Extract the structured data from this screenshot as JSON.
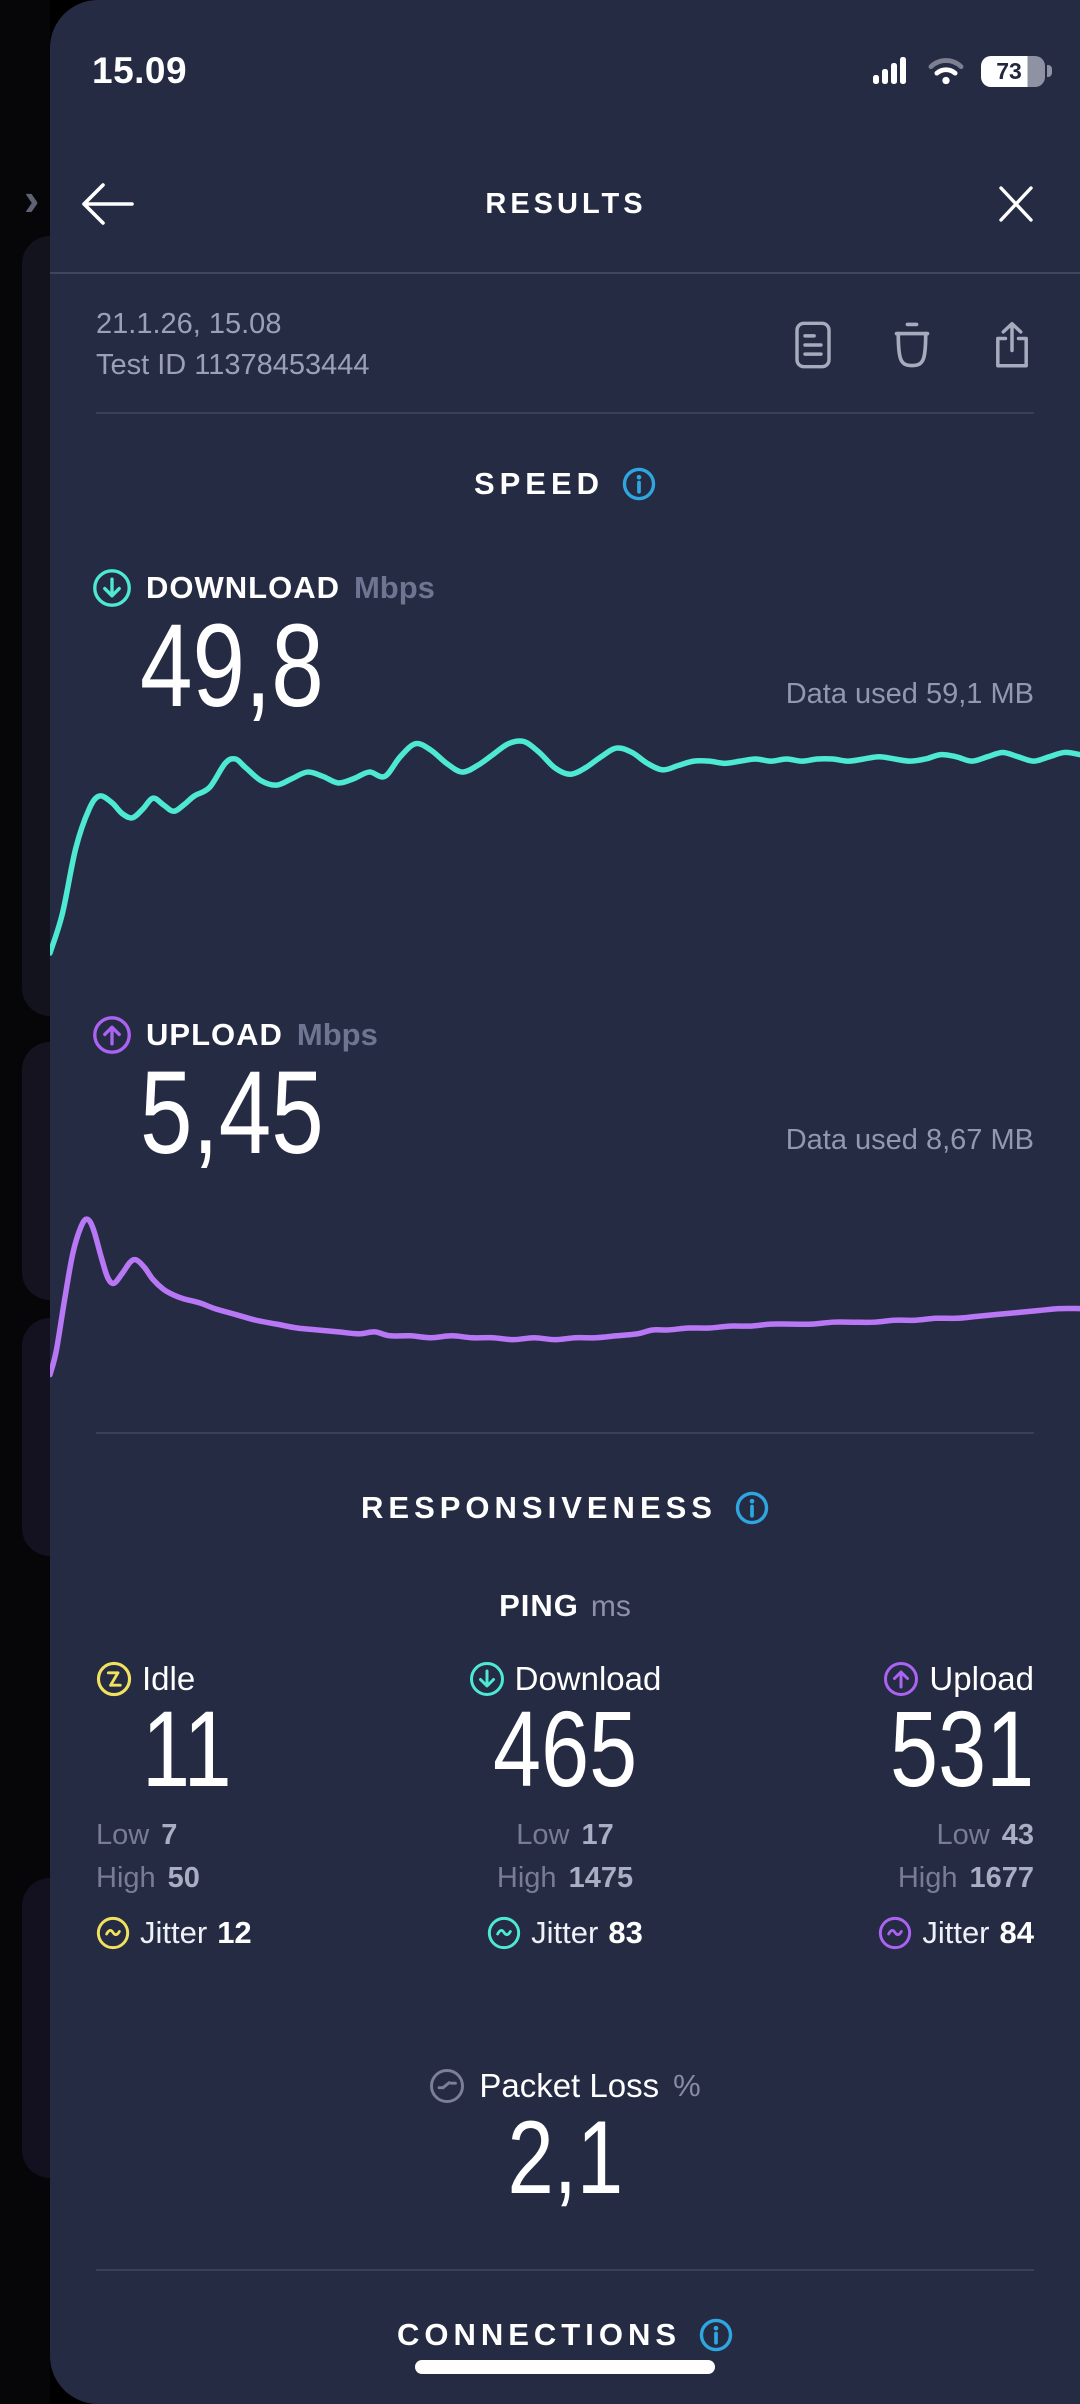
{
  "status_bar": {
    "time": "15.09",
    "battery_percent": "73"
  },
  "header": {
    "title": "RESULTS"
  },
  "test_info": {
    "datetime": "21.1.26, 15.08",
    "test_id": "Test ID 11378453444"
  },
  "speed_section": {
    "title": "SPEED",
    "download": {
      "label": "DOWNLOAD",
      "unit": "Mbps",
      "value": "49,8",
      "data_used": "Data used 59,1 MB"
    },
    "upload": {
      "label": "UPLOAD",
      "unit": "Mbps",
      "value": "5,45",
      "data_used": "Data used 8,67 MB"
    }
  },
  "responsiveness_section": {
    "title": "RESPONSIVENESS",
    "ping_title": "PING",
    "ping_unit": "ms",
    "columns": [
      {
        "label": "Idle",
        "value": "11",
        "low_label": "Low",
        "low": "7",
        "high_label": "High",
        "high": "50",
        "jitter_label": "Jitter",
        "jitter": "12",
        "color": "#f0e15e"
      },
      {
        "label": "Download",
        "value": "465",
        "low_label": "Low",
        "low": "17",
        "high_label": "High",
        "high": "1475",
        "jitter_label": "Jitter",
        "jitter": "83",
        "color": "#4de9d2"
      },
      {
        "label": "Upload",
        "value": "531",
        "low_label": "Low",
        "low": "43",
        "high_label": "High",
        "high": "1677",
        "jitter_label": "Jitter",
        "jitter": "84",
        "color": "#ab63f2"
      }
    ],
    "packet_loss": {
      "label": "Packet Loss",
      "unit": "%",
      "value": "2,1"
    }
  },
  "connections_section": {
    "title": "CONNECTIONS"
  },
  "colors": {
    "sheet_background": "#262b44",
    "behind_background": "#060609",
    "download_accent": "#4de9d2",
    "upload_accent": "#ab63f2",
    "idle_accent": "#f0e15e",
    "info_blue": "#2ea7e0",
    "muted_text": "#9aa0b5"
  },
  "chart_data": [
    {
      "type": "line",
      "name": "download-speed",
      "title": "DOWNLOAD Mbps over test duration",
      "final_value": 49.8,
      "unit": "Mbps",
      "color": "#4de9d2",
      "grid": false,
      "points": [
        [
          0,
          100
        ],
        [
          1.2,
          82
        ],
        [
          2.5,
          52
        ],
        [
          3.8,
          34
        ],
        [
          4.8,
          28
        ],
        [
          6,
          31
        ],
        [
          7,
          36
        ],
        [
          8,
          38
        ],
        [
          9,
          34
        ],
        [
          10,
          29
        ],
        [
          11,
          32
        ],
        [
          12,
          35
        ],
        [
          13,
          32
        ],
        [
          14,
          28
        ],
        [
          15.5,
          24
        ],
        [
          17,
          13
        ],
        [
          18,
          11
        ],
        [
          19,
          15
        ],
        [
          20.5,
          21
        ],
        [
          22,
          23
        ],
        [
          23.5,
          20
        ],
        [
          25,
          17
        ],
        [
          26.5,
          19
        ],
        [
          28,
          22
        ],
        [
          29.5,
          20
        ],
        [
          31,
          17
        ],
        [
          32.5,
          19
        ],
        [
          34,
          10
        ],
        [
          35.5,
          4
        ],
        [
          37,
          7
        ],
        [
          38.5,
          13
        ],
        [
          40,
          17
        ],
        [
          41.5,
          14
        ],
        [
          43,
          9
        ],
        [
          44.5,
          4
        ],
        [
          46,
          3
        ],
        [
          47.5,
          8
        ],
        [
          49,
          15
        ],
        [
          50.5,
          18
        ],
        [
          52,
          15
        ],
        [
          53.5,
          10
        ],
        [
          55,
          6
        ],
        [
          56.5,
          8
        ],
        [
          58,
          13
        ],
        [
          59.5,
          16
        ],
        [
          61,
          14
        ],
        [
          62.5,
          12
        ],
        [
          64,
          12
        ],
        [
          65.5,
          13
        ],
        [
          67,
          12
        ],
        [
          68.5,
          11
        ],
        [
          70,
          12
        ],
        [
          71.5,
          11
        ],
        [
          73,
          12
        ],
        [
          74.5,
          11
        ],
        [
          76,
          11
        ],
        [
          77.5,
          12
        ],
        [
          79,
          11
        ],
        [
          80.5,
          10
        ],
        [
          82,
          11
        ],
        [
          83.5,
          12
        ],
        [
          85,
          11
        ],
        [
          86.5,
          9
        ],
        [
          88,
          10
        ],
        [
          89.5,
          12
        ],
        [
          91,
          10
        ],
        [
          92.5,
          8
        ],
        [
          94,
          10
        ],
        [
          95.5,
          12
        ],
        [
          97,
          10
        ],
        [
          98.5,
          8
        ],
        [
          100,
          9
        ]
      ]
    },
    {
      "type": "line",
      "name": "upload-speed",
      "title": "UPLOAD Mbps over test duration",
      "final_value": 5.45,
      "unit": "Mbps",
      "color": "#b877f5",
      "grid": false,
      "points": [
        [
          0,
          100
        ],
        [
          0.6,
          88
        ],
        [
          1.4,
          62
        ],
        [
          2.2,
          38
        ],
        [
          3,
          24
        ],
        [
          3.6,
          20
        ],
        [
          4.2,
          25
        ],
        [
          5,
          40
        ],
        [
          5.6,
          50
        ],
        [
          6.2,
          53
        ],
        [
          7,
          48
        ],
        [
          7.8,
          42
        ],
        [
          8.4,
          41
        ],
        [
          9.2,
          45
        ],
        [
          10,
          51
        ],
        [
          11,
          56
        ],
        [
          12,
          59
        ],
        [
          13,
          61
        ],
        [
          14.5,
          63
        ],
        [
          16,
          66
        ],
        [
          18,
          69
        ],
        [
          20,
          72
        ],
        [
          22,
          74
        ],
        [
          24,
          76
        ],
        [
          26,
          77
        ],
        [
          28,
          78
        ],
        [
          30,
          79
        ],
        [
          31.5,
          78
        ],
        [
          33,
          80
        ],
        [
          35,
          80
        ],
        [
          37,
          81
        ],
        [
          39,
          80
        ],
        [
          41,
          81
        ],
        [
          43,
          81
        ],
        [
          45,
          82
        ],
        [
          47,
          81
        ],
        [
          49,
          82
        ],
        [
          51,
          81
        ],
        [
          53,
          81
        ],
        [
          55,
          80
        ],
        [
          57,
          79
        ],
        [
          58.5,
          77
        ],
        [
          60,
          77
        ],
        [
          62,
          76
        ],
        [
          64,
          76
        ],
        [
          66,
          75
        ],
        [
          68,
          75
        ],
        [
          70,
          74
        ],
        [
          72,
          74
        ],
        [
          74,
          74
        ],
        [
          76,
          73
        ],
        [
          78,
          73
        ],
        [
          80,
          73
        ],
        [
          82,
          72
        ],
        [
          84,
          72
        ],
        [
          86,
          71
        ],
        [
          88,
          71
        ],
        [
          90,
          70
        ],
        [
          92,
          69
        ],
        [
          94,
          68
        ],
        [
          96,
          67
        ],
        [
          98,
          66
        ],
        [
          100,
          66
        ]
      ]
    }
  ]
}
